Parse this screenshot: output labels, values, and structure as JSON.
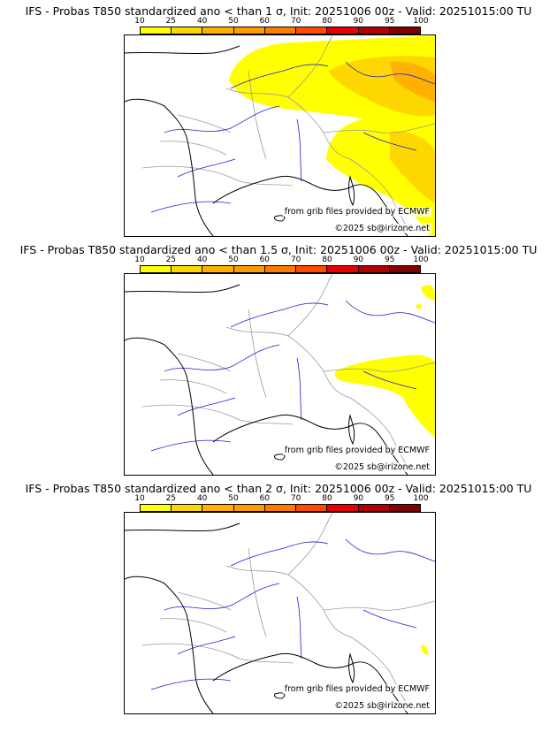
{
  "panels": [
    {
      "title": "IFS - Probas T850  standardized ano < than 1 σ, Init: 20251006 00z - Valid: 20251015:00 TU",
      "credit_source": "from grib files provided by ECMWF",
      "credit_copyright": "©2025 sb@irizone.net"
    },
    {
      "title": "IFS - Probas T850  standardized ano < than 1.5 σ, Init: 20251006 00z - Valid: 20251015:00 TU",
      "credit_source": "from grib files provided by ECMWF",
      "credit_copyright": "©2025 sb@irizone.net"
    },
    {
      "title": "IFS - Probas T850  standardized ano < than 2 σ, Init: 20251006 00z - Valid: 20251015:00 TU",
      "credit_source": "from grib files provided by ECMWF",
      "credit_copyright": "©2025 sb@irizone.net"
    }
  ],
  "legend": {
    "ticks": [
      "10",
      "25",
      "40",
      "50",
      "60",
      "70",
      "80",
      "90",
      "95",
      "100"
    ],
    "colors": [
      "#ffff00",
      "#ffd700",
      "#ffb000",
      "#ff9a00",
      "#ff7a00",
      "#ff4a00",
      "#e60000",
      "#b00000",
      "#800000"
    ]
  },
  "colors": {
    "coast": "#000000",
    "border": "#9a9a9a",
    "river": "#2020d0",
    "prob_low": "#ffff00",
    "prob_mid": "#ffd700",
    "prob_high": "#ffb000"
  }
}
